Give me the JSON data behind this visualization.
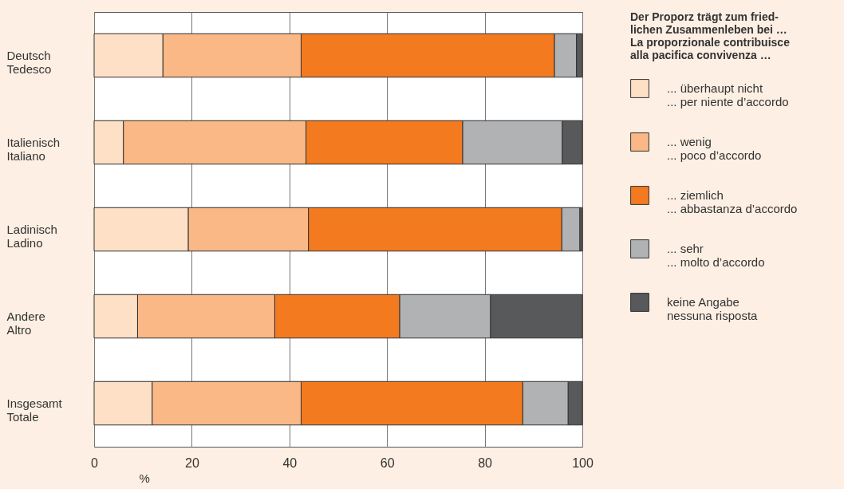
{
  "chart_data": {
    "type": "bar",
    "orientation": "horizontal",
    "stacked": true,
    "legend_title": "Der Proporz trägt zum fried-\nlichen Zusammenleben bei …\nLa proporzionale contribuisce\nalla pacifica convivenza …",
    "xlabel": "%",
    "categories": [
      "Deutsch\nTedesco",
      "Italienisch\nItaliano",
      "Ladinisch\nLadino",
      "Andere\nAltro",
      "Insgesamt\nTotale"
    ],
    "series": [
      {
        "name": "... überhaupt nicht\n... per niente d’accordo",
        "color": "#fde0c5",
        "values": [
          14.1,
          6.0,
          19.3,
          8.9,
          11.9
        ]
      },
      {
        "name": "... wenig\n... poco d’accordo",
        "color": "#f9b886",
        "values": [
          28.3,
          37.4,
          24.6,
          28.1,
          30.5
        ]
      },
      {
        "name": "... ziemlich\n... abbastanza d’accordo",
        "color": "#f47a20",
        "values": [
          51.9,
          32.1,
          51.9,
          25.6,
          45.4
        ]
      },
      {
        "name": "... sehr\n... molto d’accordo",
        "color": "#b1b2b4",
        "values": [
          4.5,
          20.4,
          3.7,
          18.6,
          9.3
        ]
      },
      {
        "name": "keine Angabe\nnessuna risposta",
        "color": "#58595b",
        "values": [
          1.2,
          4.1,
          0.5,
          18.8,
          2.9
        ]
      }
    ],
    "xlim": [
      0,
      100
    ],
    "xticks": [
      0,
      20,
      40,
      60,
      80,
      100
    ],
    "grid": true,
    "legend": "right"
  }
}
